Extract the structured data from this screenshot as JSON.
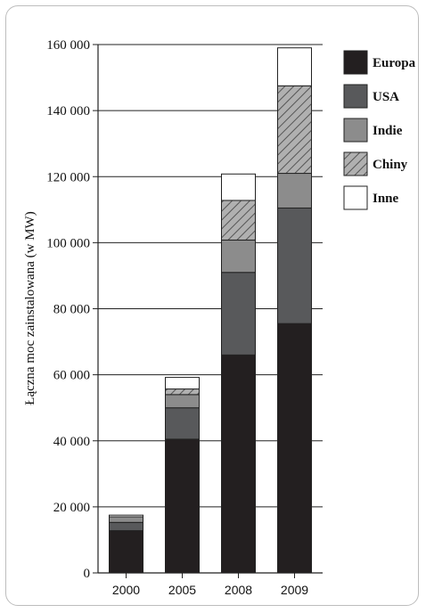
{
  "chart_data": {
    "type": "bar",
    "stacked": true,
    "title": "",
    "xlabel": "",
    "ylabel": "Łączna moc zainstalowana (w MW)",
    "ylim": [
      0,
      160000
    ],
    "yticks": [
      0,
      20000,
      40000,
      60000,
      80000,
      100000,
      120000,
      140000,
      160000
    ],
    "ytick_labels": [
      "0",
      "20 000",
      "40 000",
      "60 000",
      "80 000",
      "100 000",
      "120 000",
      "140 000",
      "160 000"
    ],
    "grid": true,
    "legend_position": "right",
    "categories": [
      "2000",
      "2005",
      "2008",
      "2009"
    ],
    "series": [
      {
        "name": "Europa",
        "color": "#231f20",
        "pattern": "solid",
        "values": [
          12800,
          40500,
          66000,
          75500
        ]
      },
      {
        "name": "USA",
        "color": "#58595b",
        "pattern": "solid",
        "values": [
          2500,
          9500,
          25000,
          35000
        ]
      },
      {
        "name": "Indie",
        "color": "#8c8c8c",
        "pattern": "solid",
        "values": [
          1700,
          4000,
          9800,
          10500
        ]
      },
      {
        "name": "Chiny",
        "color": "#9a9a9a",
        "pattern": "hatch",
        "values": [
          0,
          1700,
          12000,
          26500
        ]
      },
      {
        "name": "Inne",
        "color": "#ffffff",
        "pattern": "solid",
        "values": [
          500,
          3500,
          8000,
          11500
        ]
      }
    ]
  }
}
